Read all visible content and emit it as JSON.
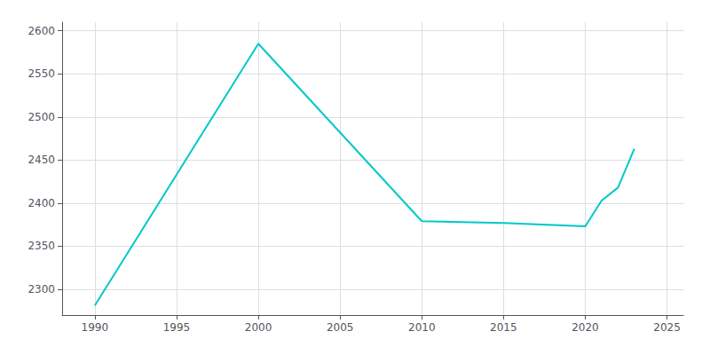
{
  "chart_data": {
    "type": "line",
    "x": [
      1990,
      2000,
      2010,
      2015,
      2020,
      2021,
      2022,
      2023
    ],
    "values": [
      2281,
      2585,
      2379,
      2377,
      2373,
      2403,
      2418,
      2463
    ],
    "color": "#00c8c8",
    "xlim": [
      1988,
      2026
    ],
    "ylim": [
      2270,
      2610
    ],
    "xticks": [
      1990,
      1995,
      2000,
      2005,
      2010,
      2015,
      2020,
      2025
    ],
    "yticks": [
      2300,
      2350,
      2400,
      2450,
      2500,
      2550,
      2600
    ],
    "grid": true
  }
}
